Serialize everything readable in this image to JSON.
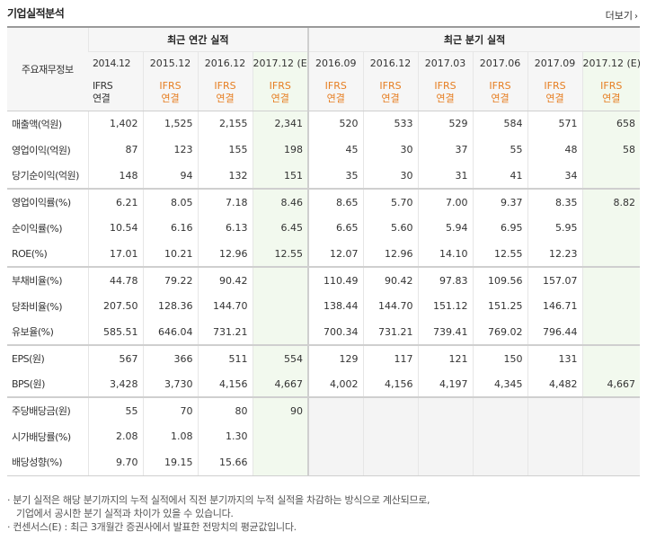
{
  "header": {
    "title": "기업실적분석",
    "more_label": "더보기",
    "more_icon": "chevron-right-icon"
  },
  "table": {
    "corner_label": "주요재무정보",
    "group_annual": "최근 연간 실적",
    "group_quarter": "최근 분기 실적",
    "periods": [
      "2014.12",
      "2015.12",
      "2016.12",
      "2017.12 (E)",
      "2016.09",
      "2016.12",
      "2017.03",
      "2017.06",
      "2017.09",
      "2017.12 (E)"
    ],
    "acct_top": "IFRS",
    "acct_bottom": "연결",
    "rows": [
      {
        "label": "매출액(억원)",
        "values": [
          "1,402",
          "1,525",
          "2,155",
          "2,341",
          "520",
          "533",
          "529",
          "584",
          "571",
          "658"
        ]
      },
      {
        "label": "영업이익(억원)",
        "values": [
          "87",
          "123",
          "155",
          "198",
          "45",
          "30",
          "37",
          "55",
          "48",
          "58"
        ]
      },
      {
        "label": "당기순이익(억원)",
        "values": [
          "148",
          "94",
          "132",
          "151",
          "35",
          "30",
          "31",
          "41",
          "34",
          ""
        ]
      },
      {
        "label": "영업이익률(%)",
        "values": [
          "6.21",
          "8.05",
          "7.18",
          "8.46",
          "8.65",
          "5.70",
          "7.00",
          "9.37",
          "8.35",
          "8.82"
        ]
      },
      {
        "label": "순이익률(%)",
        "values": [
          "10.54",
          "6.16",
          "6.13",
          "6.45",
          "6.65",
          "5.60",
          "5.94",
          "6.95",
          "5.95",
          ""
        ]
      },
      {
        "label": "ROE(%)",
        "values": [
          "17.01",
          "10.21",
          "12.96",
          "12.55",
          "12.07",
          "12.96",
          "14.10",
          "12.55",
          "12.23",
          ""
        ]
      },
      {
        "label": "부채비율(%)",
        "values": [
          "44.78",
          "79.22",
          "90.42",
          "",
          "110.49",
          "90.42",
          "97.83",
          "109.56",
          "157.07",
          ""
        ]
      },
      {
        "label": "당좌비율(%)",
        "values": [
          "207.50",
          "128.36",
          "144.70",
          "",
          "138.44",
          "144.70",
          "151.12",
          "151.25",
          "146.71",
          ""
        ]
      },
      {
        "label": "유보율(%)",
        "values": [
          "585.51",
          "646.04",
          "731.21",
          "",
          "700.34",
          "731.21",
          "739.41",
          "769.02",
          "796.44",
          ""
        ]
      },
      {
        "label": "EPS(원)",
        "values": [
          "567",
          "366",
          "511",
          "554",
          "129",
          "117",
          "121",
          "150",
          "131",
          ""
        ]
      },
      {
        "label": "BPS(원)",
        "values": [
          "3,428",
          "3,730",
          "4,156",
          "4,667",
          "4,002",
          "4,156",
          "4,197",
          "4,345",
          "4,482",
          "4,667"
        ]
      },
      {
        "label": "주당배당금(원)",
        "values": [
          "55",
          "70",
          "80",
          "90",
          "",
          "",
          "",
          "",
          "",
          ""
        ]
      },
      {
        "label": "시가배당률(%)",
        "values": [
          "2.08",
          "1.08",
          "1.30",
          "",
          "",
          "",
          "",
          "",
          "",
          ""
        ]
      },
      {
        "label": "배당성향(%)",
        "values": [
          "9.70",
          "19.15",
          "15.66",
          "",
          "",
          "",
          "",
          "",
          "",
          ""
        ]
      }
    ]
  },
  "notes": {
    "line1": "분기 실적은 해당 분기까지의 누적 실적에서 직전 분기까지의 누적 실적을 차감하는 방식으로 계산되므로,",
    "line2": "기업에서 공시한 분기 실적과 차이가 있을 수 있습니다.",
    "line3": "컨센서스(E) : 최근 3개월간 증권사에서 발표한 전망치의 평균값입니다."
  }
}
